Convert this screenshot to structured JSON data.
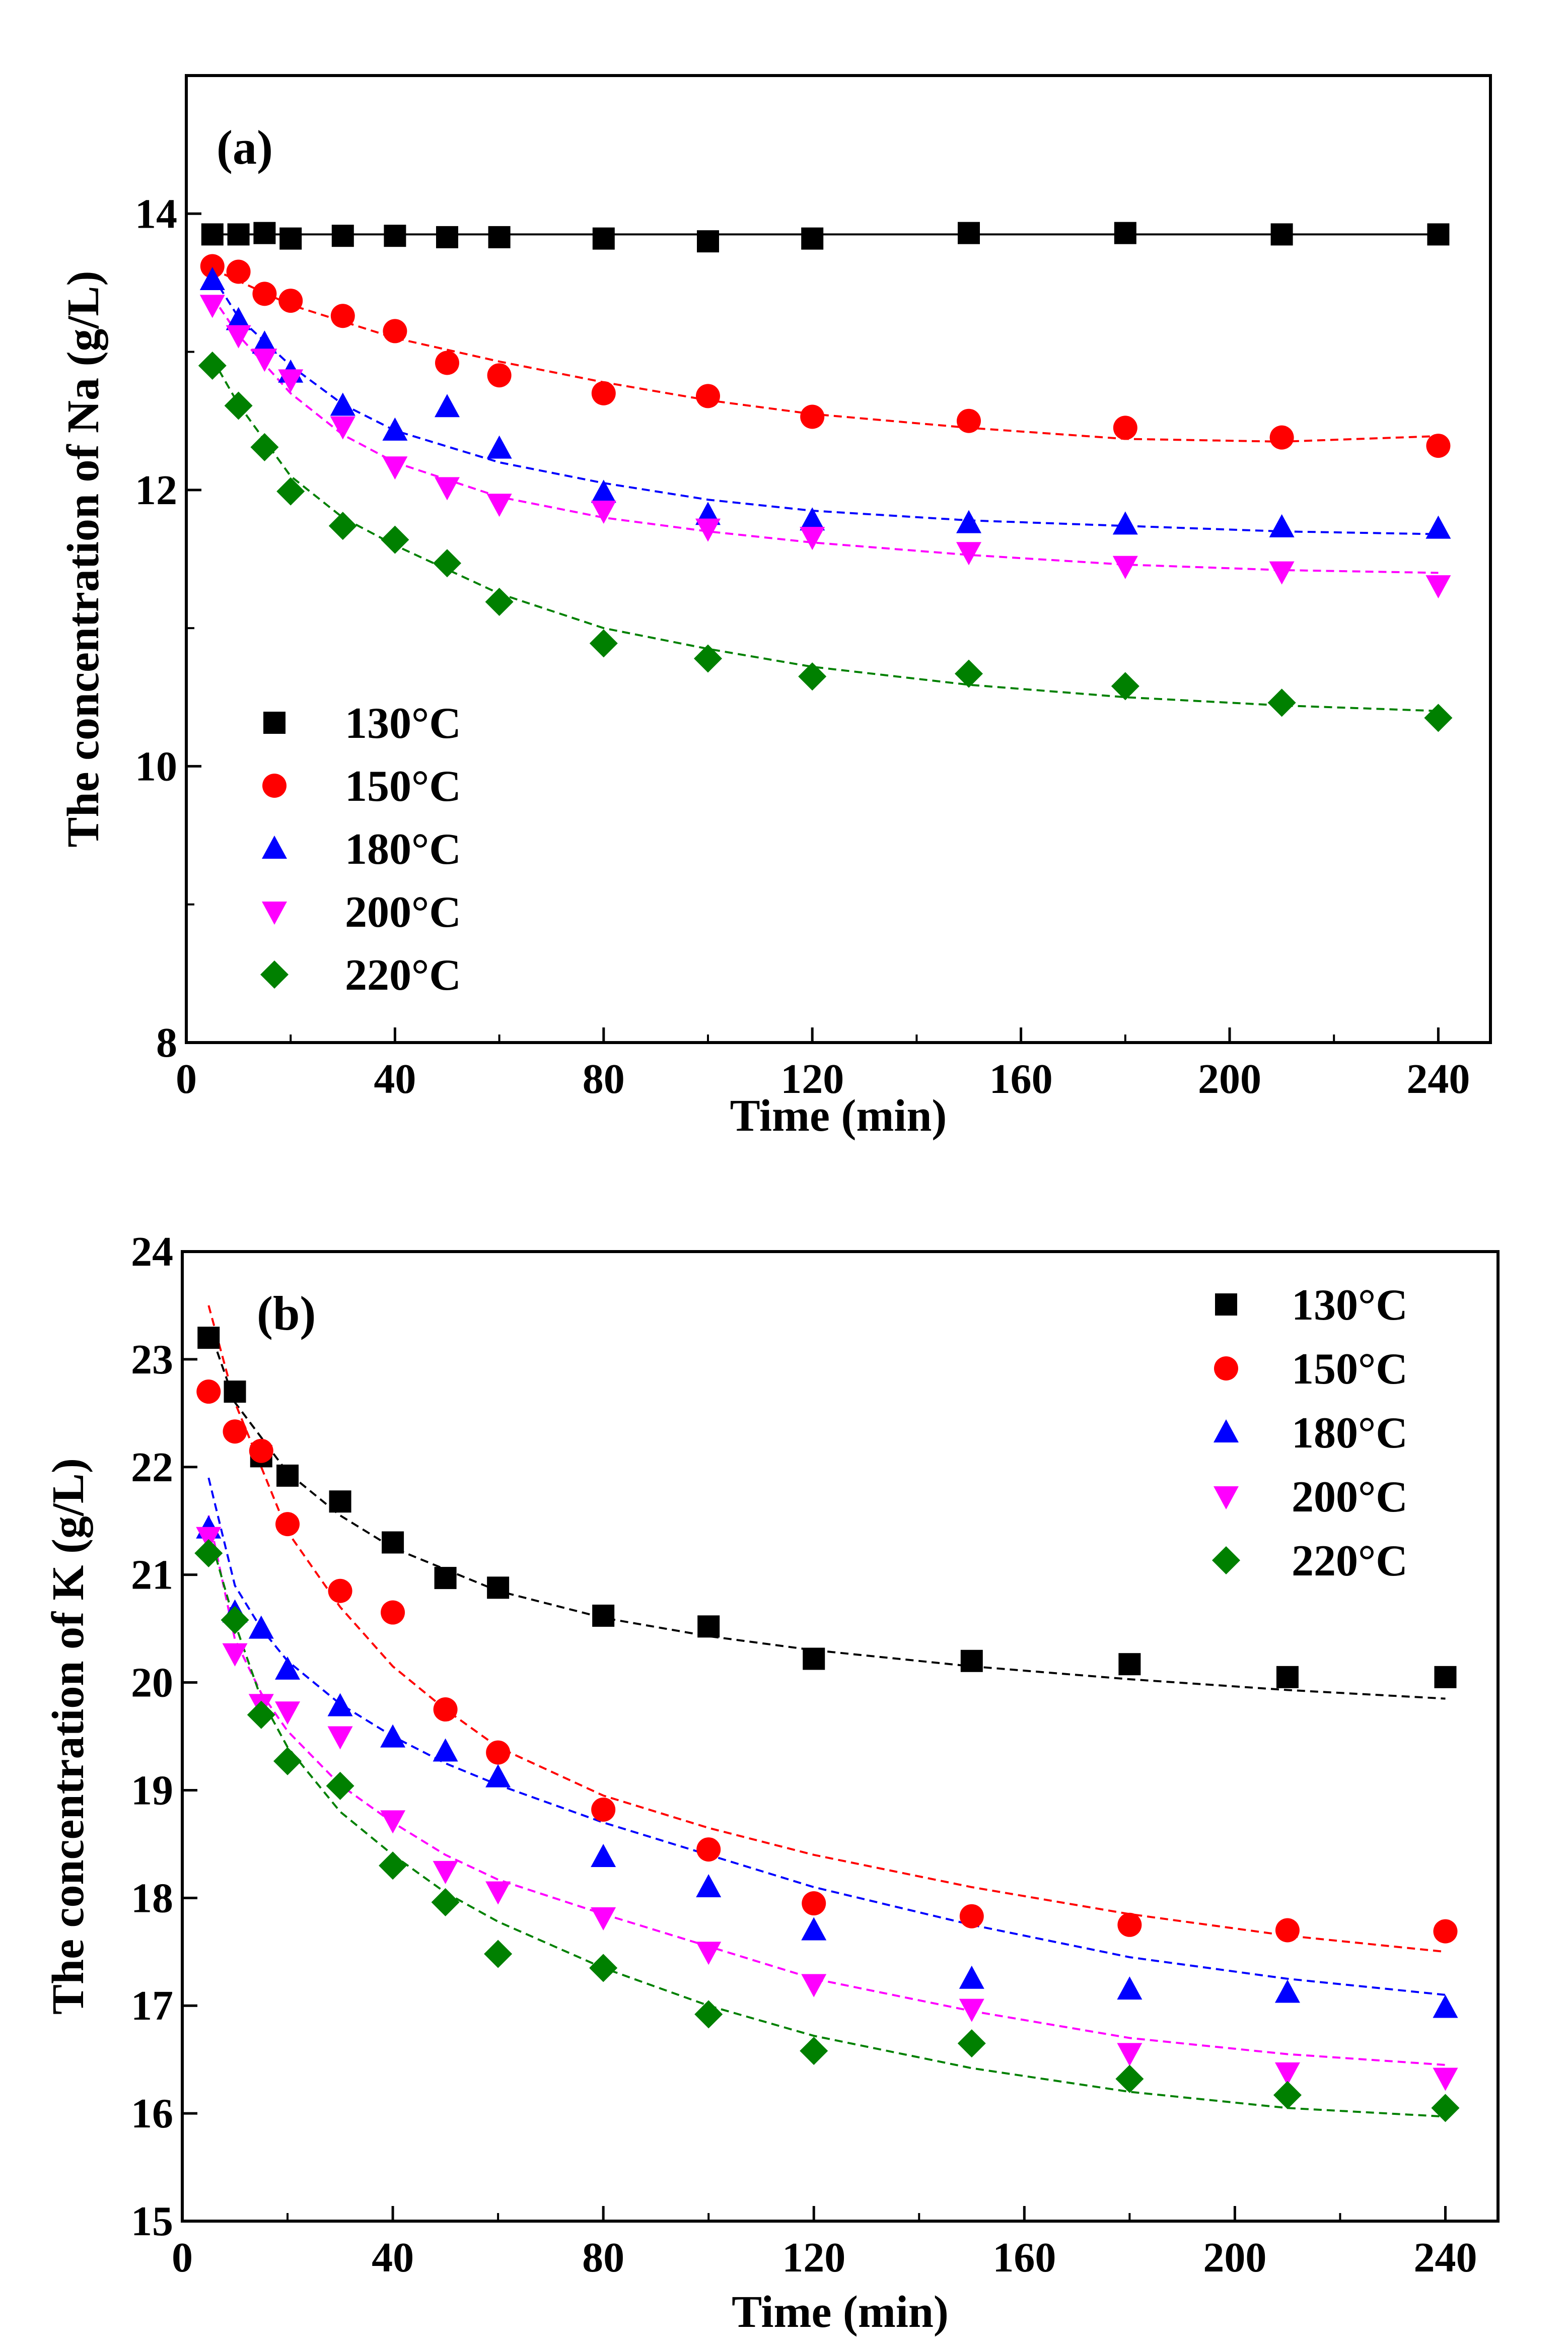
{
  "chart_data": [
    {
      "type": "scatter",
      "panel_label": "(a)",
      "xlabel": "Time (min)",
      "ylabel": "The concentration of Na (g/L)",
      "xlim": [
        0,
        250
      ],
      "ylim": [
        8,
        15
      ],
      "xticks": [
        0,
        40,
        80,
        120,
        160,
        200,
        240
      ],
      "yticks": [
        8,
        10,
        12,
        14
      ],
      "legend_position": "bottom-left",
      "series": [
        {
          "name": "130°C",
          "color": "#000000",
          "marker": "square",
          "line": "solid",
          "x": [
            5,
            10,
            15,
            20,
            30,
            40,
            50,
            60,
            80,
            100,
            120,
            150,
            180,
            210,
            240
          ],
          "y": [
            13.85,
            13.85,
            13.86,
            13.82,
            13.84,
            13.84,
            13.83,
            13.83,
            13.82,
            13.8,
            13.82,
            13.86,
            13.86,
            13.85,
            13.85
          ]
        },
        {
          "name": "150°C",
          "color": "#ff0000",
          "marker": "circle",
          "line": "dashed",
          "x": [
            5,
            10,
            15,
            20,
            30,
            40,
            50,
            60,
            80,
            100,
            120,
            150,
            180,
            210,
            240
          ],
          "y": [
            13.62,
            13.58,
            13.42,
            13.37,
            13.26,
            13.15,
            12.92,
            12.83,
            12.7,
            12.68,
            12.53,
            12.5,
            12.45,
            12.38,
            12.32
          ]
        },
        {
          "name": "180°C",
          "color": "#0000ff",
          "marker": "triangle-up",
          "line": "dashed",
          "x": [
            5,
            10,
            15,
            20,
            30,
            40,
            50,
            60,
            80,
            100,
            120,
            150,
            180,
            210,
            240
          ],
          "y": [
            13.52,
            13.23,
            13.06,
            12.85,
            12.61,
            12.43,
            12.6,
            12.3,
            11.98,
            11.82,
            11.78,
            11.76,
            11.75,
            11.73,
            11.72
          ]
        },
        {
          "name": "200°C",
          "color": "#ff00ff",
          "marker": "triangle-down",
          "line": "dashed",
          "x": [
            5,
            10,
            15,
            20,
            30,
            40,
            50,
            60,
            80,
            100,
            120,
            150,
            180,
            210,
            240
          ],
          "y": [
            13.34,
            13.12,
            12.95,
            12.8,
            12.46,
            12.17,
            12.02,
            11.9,
            11.85,
            11.72,
            11.66,
            11.55,
            11.45,
            11.41,
            11.31
          ]
        },
        {
          "name": "220°C",
          "color": "#008000",
          "marker": "diamond",
          "line": "dashed",
          "x": [
            5,
            10,
            15,
            20,
            30,
            40,
            50,
            60,
            80,
            100,
            120,
            150,
            180,
            210,
            240
          ],
          "y": [
            12.9,
            12.61,
            12.31,
            11.99,
            11.74,
            11.64,
            11.47,
            11.19,
            10.89,
            10.78,
            10.65,
            10.67,
            10.58,
            10.46,
            10.35
          ]
        }
      ],
      "fits": [
        {
          "series": "130°C",
          "x": [
            5,
            240
          ],
          "y": [
            13.85,
            13.85
          ]
        },
        {
          "series": "150°C",
          "x": [
            5,
            20,
            40,
            60,
            80,
            100,
            120,
            150,
            180,
            210,
            240
          ],
          "y": [
            13.6,
            13.34,
            13.1,
            12.93,
            12.78,
            12.65,
            12.55,
            12.45,
            12.37,
            12.35,
            12.39
          ]
        },
        {
          "series": "180°C",
          "x": [
            5,
            10,
            20,
            30,
            40,
            60,
            80,
            100,
            120,
            150,
            180,
            210,
            240
          ],
          "y": [
            13.55,
            13.25,
            12.9,
            12.62,
            12.43,
            12.2,
            12.05,
            11.93,
            11.85,
            11.78,
            11.74,
            11.7,
            11.68
          ]
        },
        {
          "series": "200°C",
          "x": [
            5,
            10,
            20,
            30,
            40,
            60,
            80,
            100,
            120,
            150,
            180,
            210,
            240
          ],
          "y": [
            13.4,
            13.12,
            12.7,
            12.4,
            12.2,
            11.95,
            11.8,
            11.7,
            11.62,
            11.53,
            11.46,
            11.42,
            11.4
          ]
        },
        {
          "series": "220°C",
          "x": [
            5,
            10,
            20,
            30,
            40,
            60,
            80,
            100,
            120,
            150,
            180,
            210,
            240
          ],
          "y": [
            12.95,
            12.62,
            12.1,
            11.8,
            11.6,
            11.25,
            11.0,
            10.85,
            10.72,
            10.59,
            10.5,
            10.44,
            10.4
          ]
        }
      ]
    },
    {
      "type": "scatter",
      "panel_label": "(b)",
      "xlabel": "Time (min)",
      "ylabel": "The concentration of K (g/L)",
      "xlim": [
        0,
        250
      ],
      "ylim": [
        15,
        24
      ],
      "xticks": [
        0,
        40,
        80,
        120,
        160,
        200,
        240
      ],
      "yticks": [
        15,
        16,
        17,
        18,
        19,
        20,
        21,
        22,
        23,
        24
      ],
      "legend_position": "top-right",
      "series": [
        {
          "name": "130°C",
          "color": "#000000",
          "marker": "square",
          "line": "dashed",
          "x": [
            5,
            10,
            15,
            20,
            30,
            40,
            50,
            60,
            80,
            100,
            120,
            150,
            180,
            210,
            240
          ],
          "y": [
            23.2,
            22.7,
            22.1,
            21.92,
            21.68,
            21.3,
            20.97,
            20.88,
            20.62,
            20.52,
            20.22,
            20.2,
            20.17,
            20.05,
            20.05
          ]
        },
        {
          "name": "150°C",
          "color": "#ff0000",
          "marker": "circle",
          "line": "dashed",
          "x": [
            5,
            10,
            15,
            20,
            30,
            40,
            50,
            60,
            80,
            100,
            120,
            150,
            180,
            210,
            240
          ],
          "y": [
            22.7,
            22.33,
            22.15,
            21.47,
            20.85,
            20.65,
            19.75,
            19.35,
            18.82,
            18.45,
            17.95,
            17.83,
            17.75,
            17.7,
            17.69
          ]
        },
        {
          "name": "180°C",
          "color": "#0000ff",
          "marker": "triangle-up",
          "line": "dashed",
          "x": [
            5,
            10,
            15,
            20,
            30,
            40,
            50,
            60,
            80,
            100,
            120,
            150,
            180,
            210,
            240
          ],
          "y": [
            21.43,
            20.65,
            20.5,
            20.12,
            19.78,
            19.49,
            19.36,
            19.12,
            18.38,
            18.1,
            17.7,
            17.25,
            17.15,
            17.12,
            16.98
          ]
        },
        {
          "name": "200°C",
          "color": "#ff00ff",
          "marker": "triangle-down",
          "line": "dashed",
          "x": [
            5,
            10,
            15,
            20,
            30,
            40,
            50,
            60,
            80,
            100,
            120,
            150,
            180,
            210,
            240
          ],
          "y": [
            21.35,
            20.27,
            19.8,
            19.73,
            19.5,
            18.72,
            18.25,
            18.06,
            17.82,
            17.5,
            17.2,
            16.97,
            16.56,
            16.38,
            16.33
          ]
        },
        {
          "name": "220°C",
          "color": "#008000",
          "marker": "diamond",
          "line": "dashed",
          "x": [
            5,
            10,
            15,
            20,
            30,
            40,
            50,
            60,
            80,
            100,
            120,
            150,
            180,
            210,
            240
          ],
          "y": [
            21.2,
            20.58,
            19.7,
            19.27,
            19.04,
            18.3,
            17.96,
            17.48,
            17.35,
            16.92,
            16.58,
            16.65,
            16.32,
            16.17,
            16.05
          ]
        }
      ],
      "fits": [
        {
          "series": "130°C",
          "x": [
            5,
            10,
            20,
            30,
            40,
            60,
            80,
            100,
            120,
            150,
            180,
            210,
            240
          ],
          "y": [
            23.3,
            22.6,
            21.95,
            21.55,
            21.25,
            20.85,
            20.6,
            20.43,
            20.3,
            20.15,
            20.03,
            19.93,
            19.85
          ]
        },
        {
          "series": "150°C",
          "x": [
            5,
            10,
            15,
            20,
            30,
            40,
            50,
            60,
            80,
            100,
            120,
            150,
            180,
            210,
            240
          ],
          "y": [
            23.5,
            22.6,
            22.0,
            21.4,
            20.7,
            20.15,
            19.75,
            19.4,
            18.95,
            18.65,
            18.4,
            18.1,
            17.85,
            17.65,
            17.5
          ]
        },
        {
          "series": "180°C",
          "x": [
            5,
            10,
            15,
            20,
            30,
            40,
            50,
            60,
            80,
            100,
            120,
            150,
            180,
            210,
            240
          ],
          "y": [
            21.9,
            20.9,
            20.5,
            20.2,
            19.8,
            19.5,
            19.25,
            19.05,
            18.7,
            18.4,
            18.1,
            17.75,
            17.45,
            17.25,
            17.1
          ]
        },
        {
          "series": "200°C",
          "x": [
            5,
            10,
            15,
            20,
            30,
            40,
            50,
            60,
            80,
            100,
            120,
            150,
            180,
            210,
            240
          ],
          "y": [
            21.55,
            20.4,
            19.9,
            19.55,
            19.05,
            18.7,
            18.4,
            18.17,
            17.85,
            17.55,
            17.25,
            16.95,
            16.7,
            16.55,
            16.45
          ]
        },
        {
          "series": "220°C",
          "x": [
            5,
            10,
            15,
            20,
            30,
            40,
            50,
            60,
            80,
            100,
            120,
            150,
            180,
            210,
            240
          ],
          "y": [
            21.4,
            20.55,
            19.85,
            19.4,
            18.8,
            18.4,
            18.05,
            17.78,
            17.35,
            17.0,
            16.72,
            16.42,
            16.2,
            16.05,
            15.97
          ]
        }
      ]
    }
  ]
}
